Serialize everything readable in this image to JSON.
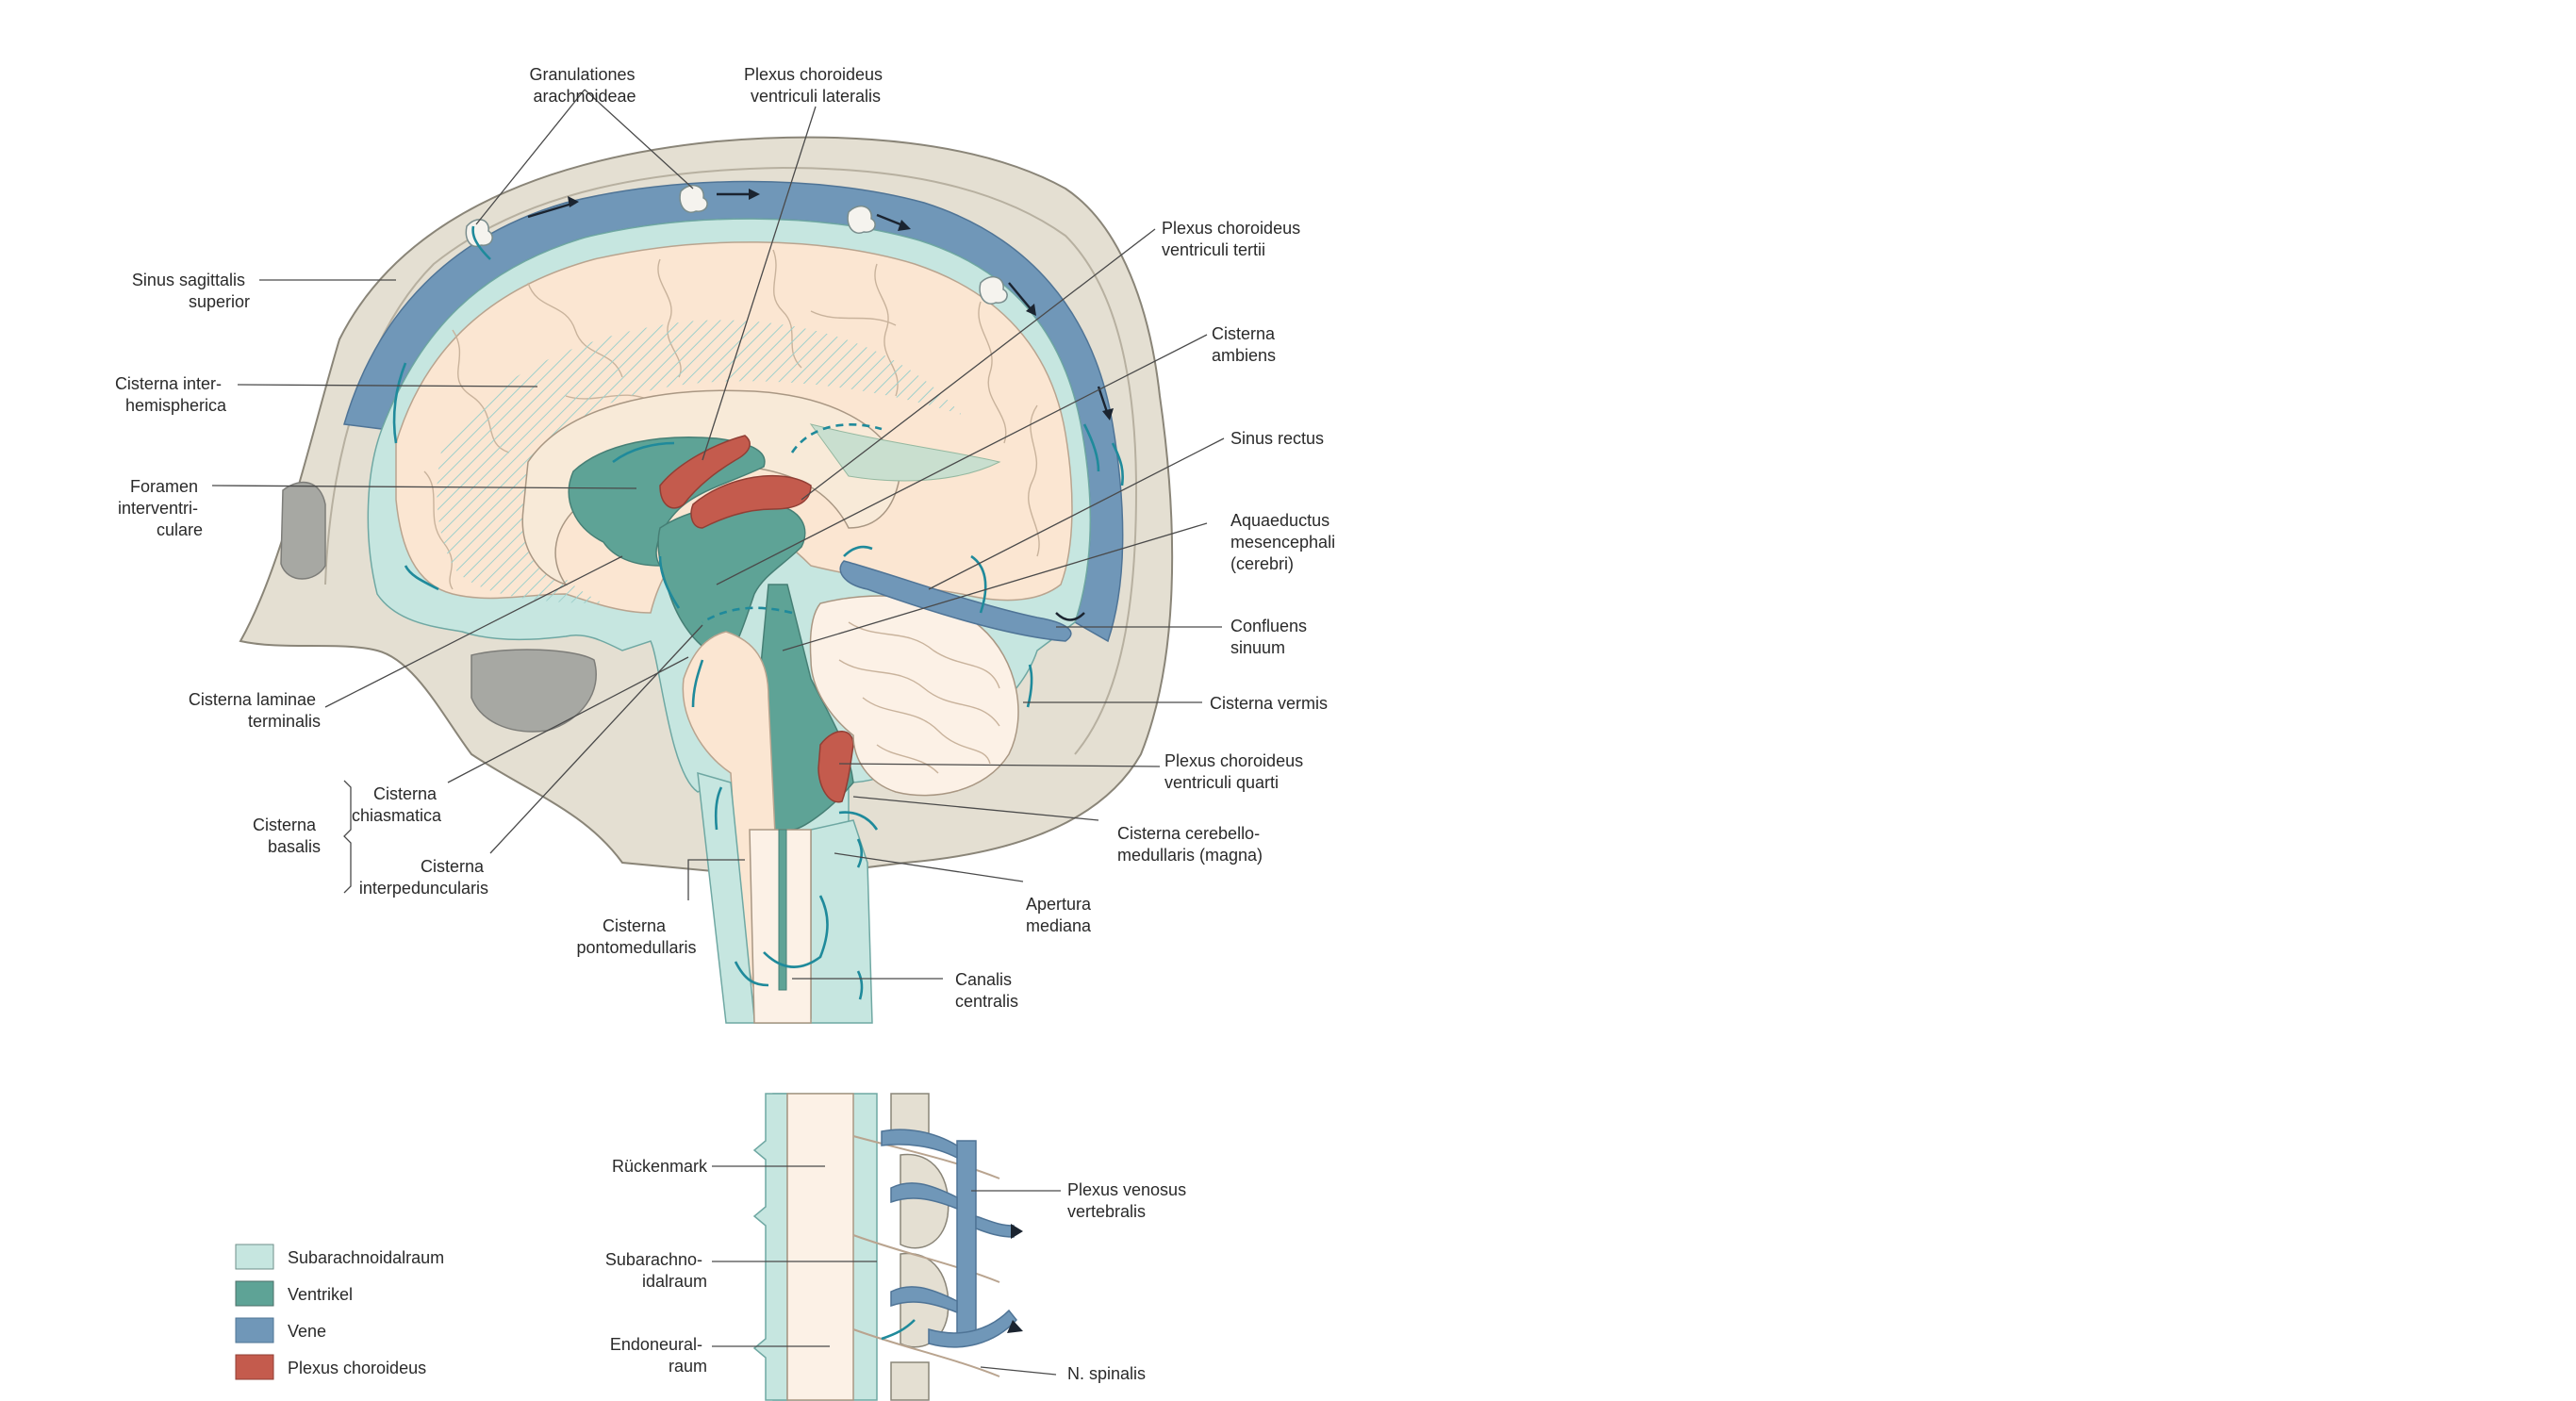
{
  "labels": {
    "granulationes": [
      "Granulationes",
      "arachnoideae"
    ],
    "plexus_lateralis": [
      "Plexus choroideus",
      "ventriculi lateralis"
    ],
    "plexus_tertii": [
      "Plexus choroideus",
      "ventriculi tertii"
    ],
    "cisterna_ambiens": [
      "Cisterna",
      "ambiens"
    ],
    "sinus_rectus": [
      "Sinus rectus"
    ],
    "aquaeductus": [
      "Aquaeductus",
      "mesencephali",
      "(cerebri)"
    ],
    "confluens": [
      "Confluens",
      "sinuum"
    ],
    "cisterna_vermis": [
      "Cisterna vermis"
    ],
    "plexus_quarti": [
      "Plexus choroideus",
      "ventriculi quarti"
    ],
    "cisterna_magna": [
      "Cisterna cerebello-",
      "medullaris (magna)"
    ],
    "apertura": [
      "Apertura",
      "mediana"
    ],
    "canalis": [
      "Canalis",
      "centralis"
    ],
    "pontomedullaris": [
      "Cisterna",
      "pontomedullaris"
    ],
    "interpeduncularis": [
      "Cisterna",
      "interpeduncularis"
    ],
    "chiasmatica": [
      "Cisterna",
      "chiasmatica"
    ],
    "basalis": [
      "Cisterna",
      "basalis"
    ],
    "laminae": [
      "Cisterna laminae",
      "terminalis"
    ],
    "foramen": [
      "Foramen",
      "interventri-",
      "culare"
    ],
    "interhemispherica": [
      "Cisterna inter-",
      "hemispherica"
    ],
    "sinus_sagittalis": [
      "Sinus sagittalis",
      "superior"
    ],
    "rueckenmark": [
      "Rückenmark"
    ],
    "subarachnoidalraum_spine": [
      "Subarachno-",
      "idalraum"
    ],
    "endoneuralraum": [
      "Endoneural-",
      "raum"
    ],
    "plexus_venosus": [
      "Plexus venosus",
      "vertebralis"
    ],
    "n_spinalis": [
      "N. spinalis"
    ]
  },
  "legend": [
    {
      "label": "Subarachnoidalraum",
      "color": "#c6e6e0"
    },
    {
      "label": "Ventrikel",
      "color": "#5ea396"
    },
    {
      "label": "Vene",
      "color": "#7097b8"
    },
    {
      "label": "Plexus choroideus",
      "color": "#c45b4d"
    }
  ]
}
